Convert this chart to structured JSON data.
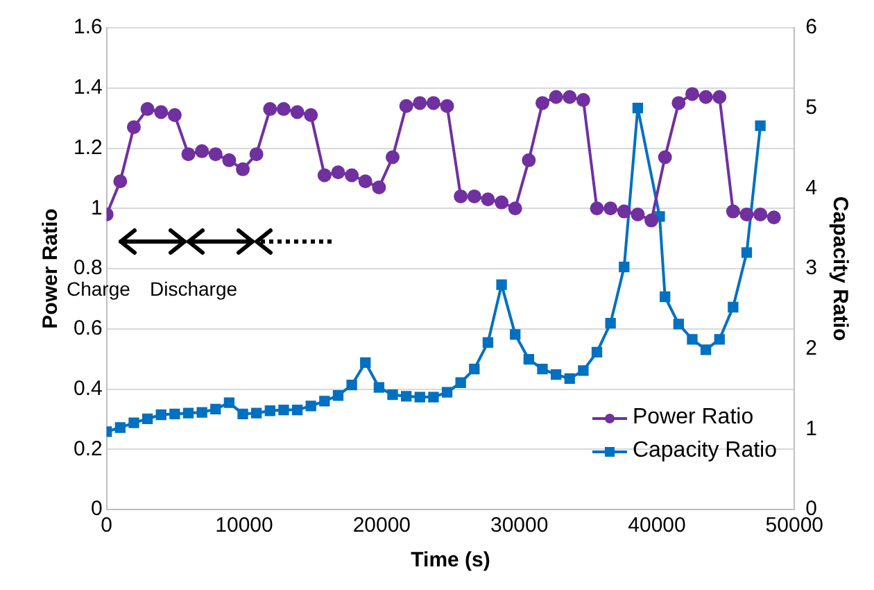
{
  "chart_data": {
    "type": "line",
    "xlabel": "Time (s)",
    "ylabel": "Power Ratio",
    "y2label": "Capacity Ratio",
    "xlim": [
      0,
      50000
    ],
    "xticks": [
      0,
      10000,
      20000,
      30000,
      40000,
      50000
    ],
    "ylim": [
      0,
      1.6
    ],
    "yticks": [
      0,
      0.2,
      0.4,
      0.6,
      0.8,
      1,
      1.2,
      1.4,
      1.6
    ],
    "y2lim": [
      0,
      6
    ],
    "y2ticks": [
      0,
      1,
      2,
      3,
      4,
      5,
      6
    ],
    "grid": "y",
    "legend": "bottom right",
    "annotations": [
      "Charge",
      "Discharge"
    ],
    "series": [
      {
        "name": "Power Ratio",
        "color": "#7030a0",
        "marker": "circle",
        "x": [
          0,
          990,
          1980,
          2970,
          3960,
          4950,
          5940,
          6930,
          7920,
          8910,
          9900,
          10890,
          11880,
          12870,
          13860,
          14850,
          15840,
          16830,
          17820,
          18810,
          19800,
          20790,
          21780,
          22770,
          23760,
          24750,
          25740,
          26730,
          27720,
          28710,
          29700,
          30690,
          31680,
          32670,
          33660,
          34650,
          35640,
          36630,
          37620,
          38610,
          39600,
          40590,
          41580,
          42570,
          43560,
          44550,
          45540,
          46530,
          47520,
          48510
        ],
        "values": [
          0.98,
          1.09,
          1.27,
          1.33,
          1.32,
          1.31,
          1.18,
          1.19,
          1.18,
          1.16,
          1.13,
          1.18,
          1.33,
          1.33,
          1.32,
          1.31,
          1.11,
          1.12,
          1.11,
          1.09,
          1.07,
          1.17,
          1.34,
          1.35,
          1.35,
          1.34,
          1.04,
          1.04,
          1.03,
          1.02,
          1.0,
          1.16,
          1.35,
          1.37,
          1.37,
          1.36,
          1.0,
          1.0,
          0.99,
          0.98,
          0.96,
          1.17,
          1.35,
          1.38,
          1.37,
          1.37,
          0.99,
          0.98,
          0.98,
          0.97
        ]
      },
      {
        "name": "Capacity Ratio",
        "color": "#0070c0",
        "marker": "square",
        "axis": "y2",
        "x": [
          0,
          990,
          1980,
          2970,
          3960,
          4950,
          5940,
          6930,
          7920,
          8910,
          9900,
          10890,
          11880,
          12870,
          13860,
          14850,
          15840,
          16830,
          17820,
          18810,
          19800,
          20790,
          21780,
          22770,
          23760,
          24750,
          25740,
          26730,
          27720,
          28710,
          29700,
          30690,
          31680,
          32670,
          33660,
          34650,
          35640,
          36630,
          37620,
          38610,
          40200,
          40590,
          41580,
          42570,
          43560,
          44550,
          45540,
          46530,
          47520
        ],
        "values": [
          0.97,
          1.02,
          1.08,
          1.13,
          1.18,
          1.19,
          1.2,
          1.21,
          1.25,
          1.33,
          1.19,
          1.2,
          1.23,
          1.24,
          1.24,
          1.29,
          1.35,
          1.42,
          1.55,
          1.83,
          1.52,
          1.43,
          1.41,
          1.4,
          1.4,
          1.46,
          1.58,
          1.75,
          2.08,
          2.8,
          2.18,
          1.87,
          1.75,
          1.68,
          1.63,
          1.73,
          1.96,
          2.32,
          3.02,
          5.0,
          3.65,
          2.65,
          2.31,
          2.12,
          1.99,
          2.12,
          2.52,
          3.2,
          4.78
        ]
      }
    ]
  }
}
